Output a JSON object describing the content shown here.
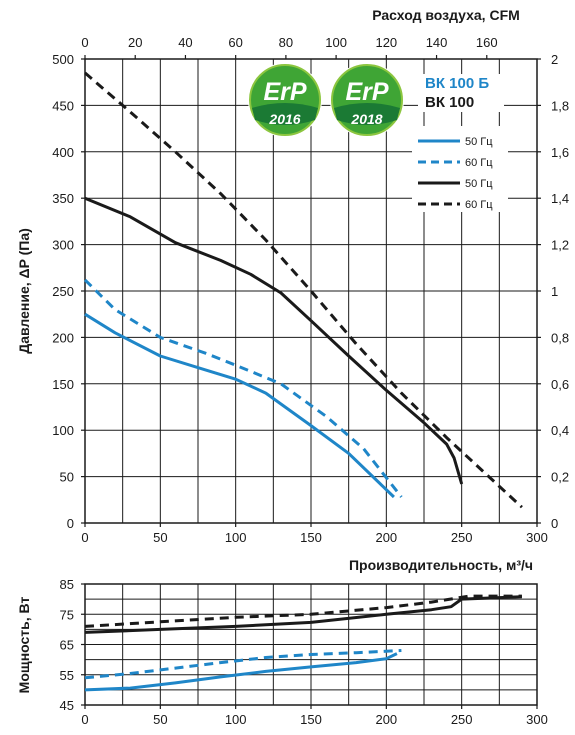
{
  "chart_data": [
    {
      "type": "line",
      "title": "",
      "xlabel": "Производительность, м³/ч",
      "ylabel": "Давление, ΔP (Па)",
      "x2label": "Расход воздуха, CFM",
      "xlim": [
        0,
        300
      ],
      "ylim": [
        0,
        500
      ],
      "x2lim": [
        0,
        180
      ],
      "y2lim": [
        0,
        2
      ],
      "x_ticks": [
        "0",
        "50",
        "100",
        "150",
        "200",
        "250",
        "300"
      ],
      "y_ticks": [
        "0",
        "50",
        "100",
        "150",
        "200",
        "250",
        "300",
        "350",
        "400",
        "450",
        "500"
      ],
      "x2_ticks": [
        "0",
        "20",
        "40",
        "60",
        "80",
        "100",
        "120",
        "140",
        "160"
      ],
      "y2_ticks": [
        "0",
        "0,2",
        "0,4",
        "0,6",
        "0,8",
        "1",
        "1,2",
        "1,4",
        "1,6",
        "1,8",
        "2"
      ],
      "grid": true,
      "legend_position": "top-right",
      "models": [
        {
          "name": "ВК 100 Б",
          "color": "#1f86c8"
        },
        {
          "name": "ВК  100",
          "color": "#1a1a1a"
        }
      ],
      "badges": [
        {
          "erp": "ErP",
          "year": "2016"
        },
        {
          "erp": "ErP",
          "year": "2018"
        }
      ],
      "series": [
        {
          "name": "50 Гц",
          "model": "ВК 100 Б",
          "color": "#1f86c8",
          "dash": "solid",
          "points": [
            [
              0,
              225
            ],
            [
              20,
              205
            ],
            [
              50,
              180
            ],
            [
              80,
              165
            ],
            [
              100,
              155
            ],
            [
              120,
              140
            ],
            [
              150,
              105
            ],
            [
              175,
              75
            ],
            [
              205,
              28
            ]
          ]
        },
        {
          "name": "60 Гц",
          "model": "ВК 100 Б",
          "color": "#1f86c8",
          "dash": "dashed",
          "points": [
            [
              0,
              262
            ],
            [
              20,
              230
            ],
            [
              50,
              200
            ],
            [
              80,
              183
            ],
            [
              100,
              170
            ],
            [
              130,
              150
            ],
            [
              160,
              115
            ],
            [
              185,
              80
            ],
            [
              210,
              28
            ]
          ]
        },
        {
          "name": "50 Гц",
          "model": "ВК  100",
          "color": "#1a1a1a",
          "dash": "solid",
          "points": [
            [
              0,
              350
            ],
            [
              30,
              330
            ],
            [
              60,
              302
            ],
            [
              90,
              283
            ],
            [
              110,
              268
            ],
            [
              130,
              248
            ],
            [
              150,
              218
            ],
            [
              175,
              180
            ],
            [
              200,
              143
            ],
            [
              225,
              108
            ],
            [
              240,
              85
            ],
            [
              245,
              70
            ],
            [
              250,
              42
            ]
          ]
        },
        {
          "name": "60 Гц",
          "model": "ВК  100",
          "color": "#1a1a1a",
          "dash": "dashed",
          "points": [
            [
              0,
              485
            ],
            [
              30,
              443
            ],
            [
              60,
              400
            ],
            [
              90,
              355
            ],
            [
              120,
              305
            ],
            [
              150,
              250
            ],
            [
              180,
              193
            ],
            [
              210,
              140
            ],
            [
              240,
              92
            ],
            [
              270,
              47
            ],
            [
              290,
              17
            ]
          ]
        }
      ]
    },
    {
      "type": "line",
      "title": "",
      "xlabel": "",
      "ylabel": "Мощность, Вт",
      "xlim": [
        0,
        300
      ],
      "ylim": [
        45,
        85
      ],
      "x_ticks": [
        "0",
        "50",
        "100",
        "150",
        "200",
        "250",
        "300"
      ],
      "y_ticks": [
        "45",
        "55",
        "65",
        "75",
        "85"
      ],
      "grid": true,
      "series": [
        {
          "name": "50 Гц",
          "model": "ВК 100 Б",
          "color": "#1f86c8",
          "dash": "solid",
          "points": [
            [
              0,
              50
            ],
            [
              30,
              50.6
            ],
            [
              60,
              52.3
            ],
            [
              90,
              54.3
            ],
            [
              120,
              56.1
            ],
            [
              150,
              57.6
            ],
            [
              180,
              59
            ],
            [
              200,
              60.3
            ],
            [
              207,
              62
            ]
          ]
        },
        {
          "name": "60 Гц",
          "model": "ВК 100 Б",
          "color": "#1f86c8",
          "dash": "dashed",
          "points": [
            [
              0,
              54
            ],
            [
              30,
              55.4
            ],
            [
              60,
              57.2
            ],
            [
              90,
              59
            ],
            [
              120,
              60.7
            ],
            [
              150,
              61.7
            ],
            [
              180,
              62.3
            ],
            [
              210,
              63
            ]
          ]
        },
        {
          "name": "50 Гц",
          "model": "ВК  100",
          "color": "#1a1a1a",
          "dash": "solid",
          "points": [
            [
              0,
              69
            ],
            [
              50,
              70
            ],
            [
              100,
              71
            ],
            [
              150,
              72.3
            ],
            [
              200,
              75
            ],
            [
              230,
              76.5
            ],
            [
              243,
              77.5
            ],
            [
              250,
              80
            ],
            [
              290,
              80.8
            ]
          ]
        },
        {
          "name": "60 Гц",
          "model": "ВК  100",
          "color": "#1a1a1a",
          "dash": "dashed",
          "points": [
            [
              0,
              71
            ],
            [
              50,
              72.5
            ],
            [
              100,
              74
            ],
            [
              150,
              75
            ],
            [
              200,
              77.2
            ],
            [
              230,
              79
            ],
            [
              255,
              81
            ],
            [
              290,
              81
            ]
          ]
        }
      ]
    }
  ]
}
